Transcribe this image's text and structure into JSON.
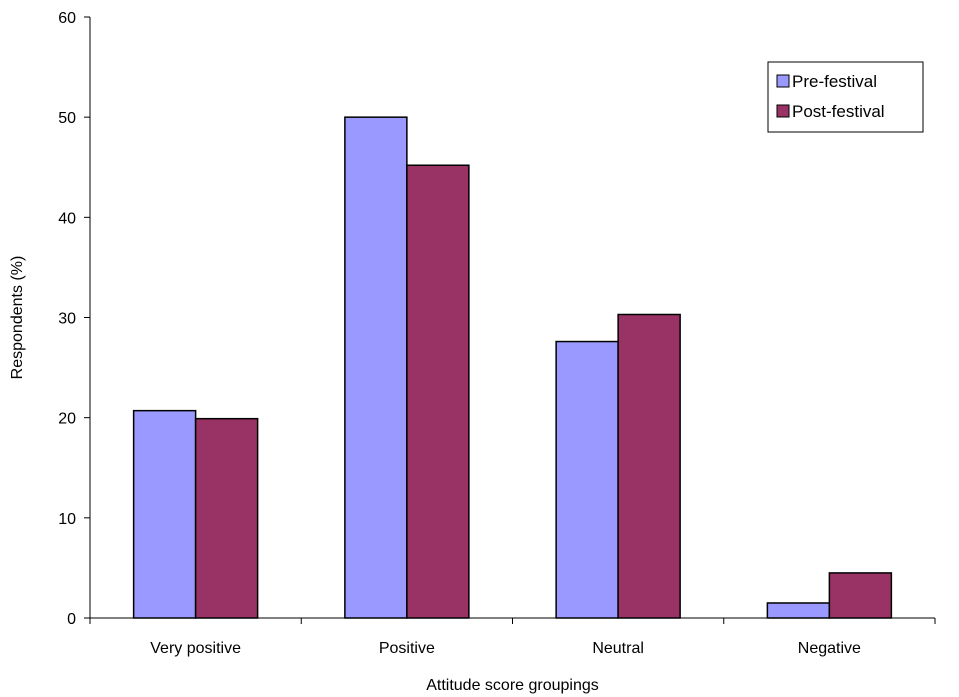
{
  "chart_data": {
    "type": "bar",
    "title": "",
    "xlabel": "Attitude score groupings",
    "ylabel": "Respondents (%)",
    "ylim": [
      0,
      60
    ],
    "yticks": [
      0,
      10,
      20,
      30,
      40,
      50,
      60
    ],
    "grid": false,
    "legend_position": "top-right",
    "categories": [
      "Very positive",
      "Positive",
      "Neutral",
      "Negative"
    ],
    "series": [
      {
        "name": "Pre-festival",
        "color": "#9999ff",
        "values": [
          20.7,
          50.0,
          27.6,
          1.5
        ]
      },
      {
        "name": "Post-festival",
        "color": "#993366",
        "values": [
          19.9,
          45.2,
          30.3,
          4.5
        ]
      }
    ]
  }
}
